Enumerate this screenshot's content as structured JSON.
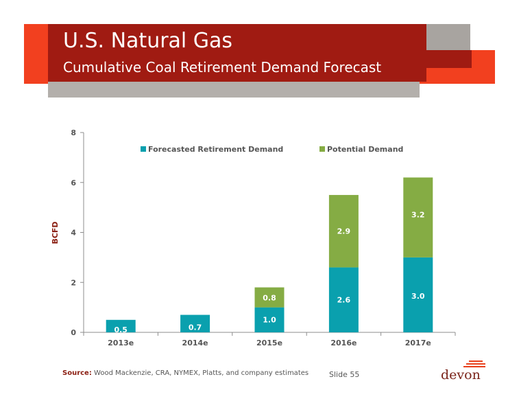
{
  "header": {
    "title": "U.S. Natural Gas",
    "subtitle": "Cumulative Coal Retirement Demand Forecast"
  },
  "colors": {
    "forecasted": "#0aa0ae",
    "potential": "#85ac44",
    "brand_dark": "#a01b12",
    "brand_light": "#f2401f",
    "gray": "#a8a4a0"
  },
  "chart_data": {
    "type": "bar",
    "stacked": true,
    "categories": [
      "2013e",
      "2014e",
      "2015e",
      "2016e",
      "2017e"
    ],
    "series": [
      {
        "name": "Forecasted Retirement Demand",
        "values": [
          0.5,
          0.7,
          1.0,
          2.6,
          3.0
        ],
        "labels": [
          "0.5",
          "0.7",
          "1.0",
          "2.6",
          "3.0"
        ]
      },
      {
        "name": "Potential Demand",
        "values": [
          null,
          null,
          0.8,
          2.9,
          3.2
        ],
        "labels": [
          "",
          "",
          "0.8",
          "2.9",
          "3.2"
        ]
      }
    ],
    "ylabel": "BCFD",
    "xlabel": "",
    "ylim": [
      0,
      8
    ],
    "yticks": [
      "0",
      "2",
      "4",
      "6",
      "8"
    ],
    "grid": false,
    "legend": "top"
  },
  "footer": {
    "source_label": "Source:",
    "source_text": "Wood Mackenzie, CRA, NYMEX, Platts, and company estimates",
    "slide": "Slide 55",
    "logo_text": "devon"
  }
}
